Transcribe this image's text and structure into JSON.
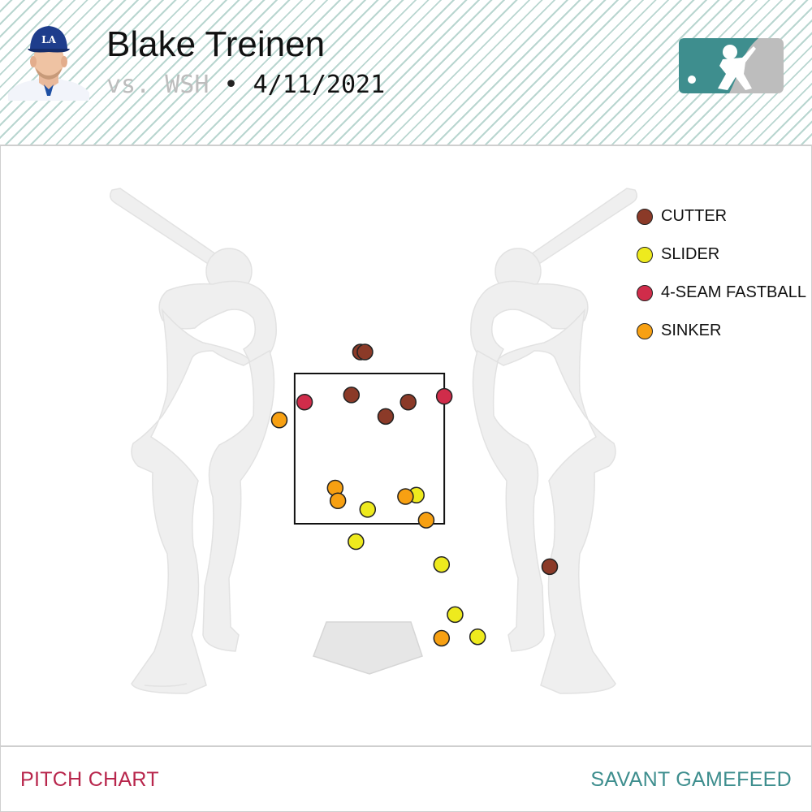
{
  "header": {
    "player_name": "Blake Treinen",
    "opponent": "vs. WSH",
    "separator": "•",
    "date": "4/11/2021",
    "avatar_icon": "player-headshot",
    "logo_icon": "mlb-logo"
  },
  "colors": {
    "CUTTER": "#8b3a28",
    "SLIDER": "#eeea1e",
    "4-SEAM FASTBALL": "#d02c4a",
    "SINKER": "#f7a012",
    "header_stripe": "#b9d6d0",
    "logo_teal": "#3e8e8e",
    "footer_left": "#b8264c",
    "footer_right": "#3e8e8e"
  },
  "chart_data": {
    "type": "scatter",
    "title": "",
    "xlabel": "",
    "ylabel": "",
    "x_axis_range": [
      -2.2,
      2.2
    ],
    "y_axis_range": [
      -0.6,
      5.2
    ],
    "strike_zone": {
      "x": [
        -0.83,
        0.83
      ],
      "y": [
        1.5,
        3.6
      ]
    },
    "legend_position": "top-right",
    "series": [
      {
        "name": "CUTTER",
        "points": [
          {
            "x": -0.1,
            "y": 3.9
          },
          {
            "x": -0.05,
            "y": 3.9
          },
          {
            "x": -0.2,
            "y": 3.3
          },
          {
            "x": 0.43,
            "y": 3.2
          },
          {
            "x": 0.18,
            "y": 3.0
          },
          {
            "x": 2.0,
            "y": 0.9
          }
        ]
      },
      {
        "name": "SLIDER",
        "points": [
          {
            "x": -0.02,
            "y": 1.7
          },
          {
            "x": 0.52,
            "y": 1.9
          },
          {
            "x": -0.15,
            "y": 1.25
          },
          {
            "x": 0.8,
            "y": 0.93
          },
          {
            "x": 0.95,
            "y": 0.23
          },
          {
            "x": 1.2,
            "y": -0.08
          }
        ]
      },
      {
        "name": "4-SEAM FASTBALL",
        "points": [
          {
            "x": -0.72,
            "y": 3.2
          },
          {
            "x": 0.83,
            "y": 3.28
          }
        ]
      },
      {
        "name": "SINKER",
        "points": [
          {
            "x": -1.0,
            "y": 2.95
          },
          {
            "x": -0.38,
            "y": 2.0
          },
          {
            "x": -0.35,
            "y": 1.82
          },
          {
            "x": 0.4,
            "y": 1.88
          },
          {
            "x": 0.63,
            "y": 1.55
          },
          {
            "x": 0.8,
            "y": -0.1
          }
        ]
      }
    ]
  },
  "footer": {
    "left": "PITCH CHART",
    "right": "SAVANT GAMEFEED"
  }
}
